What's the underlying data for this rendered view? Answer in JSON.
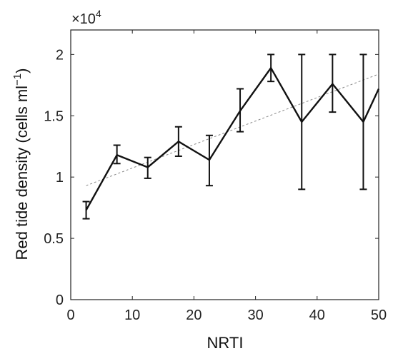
{
  "chart_data": {
    "type": "line",
    "xlabel": "NRTI",
    "ylabel_main": "Red tide density (cells ml",
    "ylabel_sup": "−1",
    "ylabel_close": ")",
    "multiplier_base": "×10",
    "multiplier_exp": "4",
    "xlim": [
      0,
      50
    ],
    "ylim": [
      0,
      2.2
    ],
    "x_ticks": [
      0,
      10,
      20,
      30,
      40,
      50
    ],
    "y_ticks": [
      0,
      0.5,
      1,
      1.5,
      2
    ],
    "x_tick_labels": [
      "0",
      "10",
      "20",
      "30",
      "40",
      "50"
    ],
    "y_tick_labels": [
      "0",
      "0.5",
      "1",
      "1.5",
      "2"
    ],
    "grid": false,
    "series": [
      {
        "x": [
          2.5,
          7.5,
          12.5,
          17.5,
          22.5,
          27.5,
          32.5,
          37.5,
          42.5,
          47.5,
          50
        ],
        "y": [
          0.73,
          1.18,
          1.08,
          1.29,
          1.14,
          1.54,
          1.89,
          1.45,
          1.76,
          1.45,
          1.72
        ],
        "err_low": [
          0.66,
          1.11,
          0.99,
          1.17,
          0.93,
          1.37,
          1.78,
          0.9,
          1.53,
          0.9,
          null
        ],
        "err_high": [
          0.8,
          1.26,
          1.16,
          1.41,
          1.34,
          1.72,
          2.0,
          2.0,
          2.0,
          2.0,
          null
        ]
      }
    ],
    "trendline": {
      "x": [
        2.5,
        50
      ],
      "y": [
        0.93,
        1.84
      ]
    }
  }
}
